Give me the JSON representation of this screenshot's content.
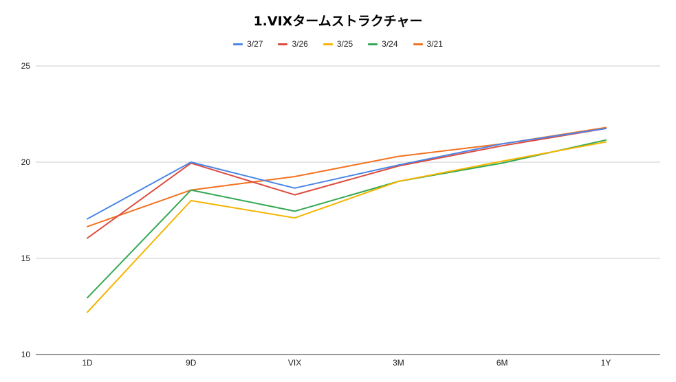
{
  "chart_data": {
    "type": "line",
    "title": "1.VIXタームストラクチャー",
    "categories": [
      "1D",
      "9D",
      "VIX",
      "3M",
      "6M",
      "1Y"
    ],
    "series": [
      {
        "name": "3/27",
        "color": "#4a86e8",
        "values": [
          17.05,
          20.0,
          18.65,
          19.85,
          20.95,
          21.75
        ]
      },
      {
        "name": "3/26",
        "color": "#dd4b3e",
        "values": [
          16.05,
          19.95,
          18.3,
          19.8,
          20.85,
          21.75
        ]
      },
      {
        "name": "3/25",
        "color": "#f4b400",
        "values": [
          12.2,
          18.0,
          17.1,
          19.0,
          20.05,
          21.05
        ]
      },
      {
        "name": "3/24",
        "color": "#34a853",
        "values": [
          12.95,
          18.55,
          17.45,
          19.0,
          19.95,
          21.15
        ]
      },
      {
        "name": "3/21",
        "color": "#f37220",
        "values": [
          16.65,
          18.55,
          19.25,
          20.3,
          20.95,
          21.8
        ]
      }
    ],
    "ylim": [
      10,
      25
    ],
    "yticks": [
      "10",
      "15",
      "20",
      "25"
    ],
    "xlabel": "",
    "ylabel": "",
    "grid": true,
    "legend": "top-center"
  }
}
